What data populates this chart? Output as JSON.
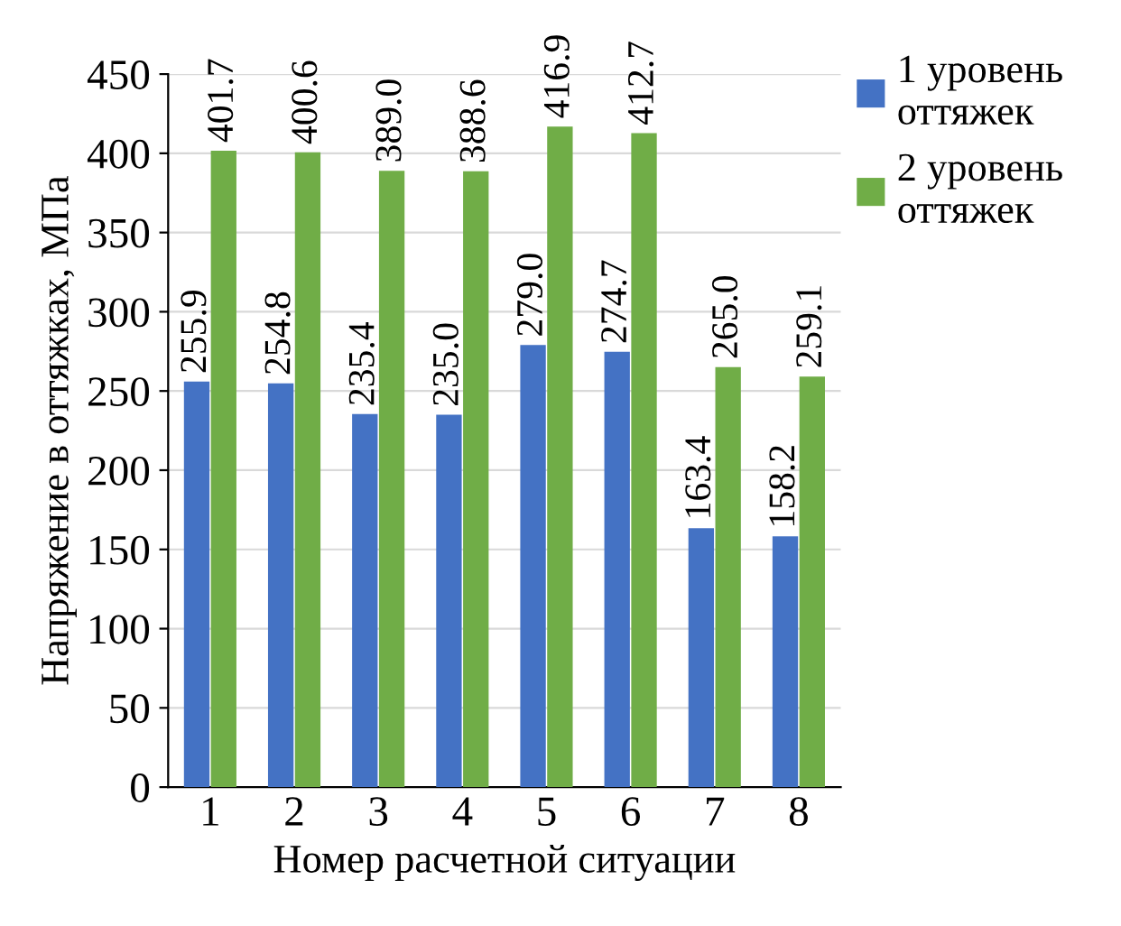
{
  "chart_data": {
    "type": "bar",
    "xlabel": "Номер расчетной ситуации",
    "ylabel": "Напряжение в оттяжках, МПа",
    "categories": [
      "1",
      "2",
      "3",
      "4",
      "5",
      "6",
      "7",
      "8"
    ],
    "series": [
      {
        "name": "1 уровень оттяжек",
        "color": "#4472c4",
        "values": [
          255.9,
          254.8,
          235.4,
          235.0,
          279.0,
          274.7,
          163.4,
          158.2
        ],
        "value_labels": [
          "255.9",
          "254.8",
          "235.4",
          "235.0",
          "279.0",
          "274.7",
          "163.4",
          "158.2"
        ]
      },
      {
        "name": "2 уровень оттяжек",
        "color": "#70ad47",
        "values": [
          401.7,
          400.6,
          389.0,
          388.6,
          416.9,
          412.7,
          265.0,
          259.1
        ],
        "value_labels": [
          "401.7",
          "400.6",
          "389.0",
          "388.6",
          "416.9",
          "412.7",
          "265.0",
          "259.1"
        ]
      }
    ],
    "ylim": [
      0,
      450
    ],
    "yticks": [
      0,
      50,
      100,
      150,
      200,
      250,
      300,
      350,
      400,
      450
    ],
    "grid": "y",
    "legend": "top right"
  }
}
